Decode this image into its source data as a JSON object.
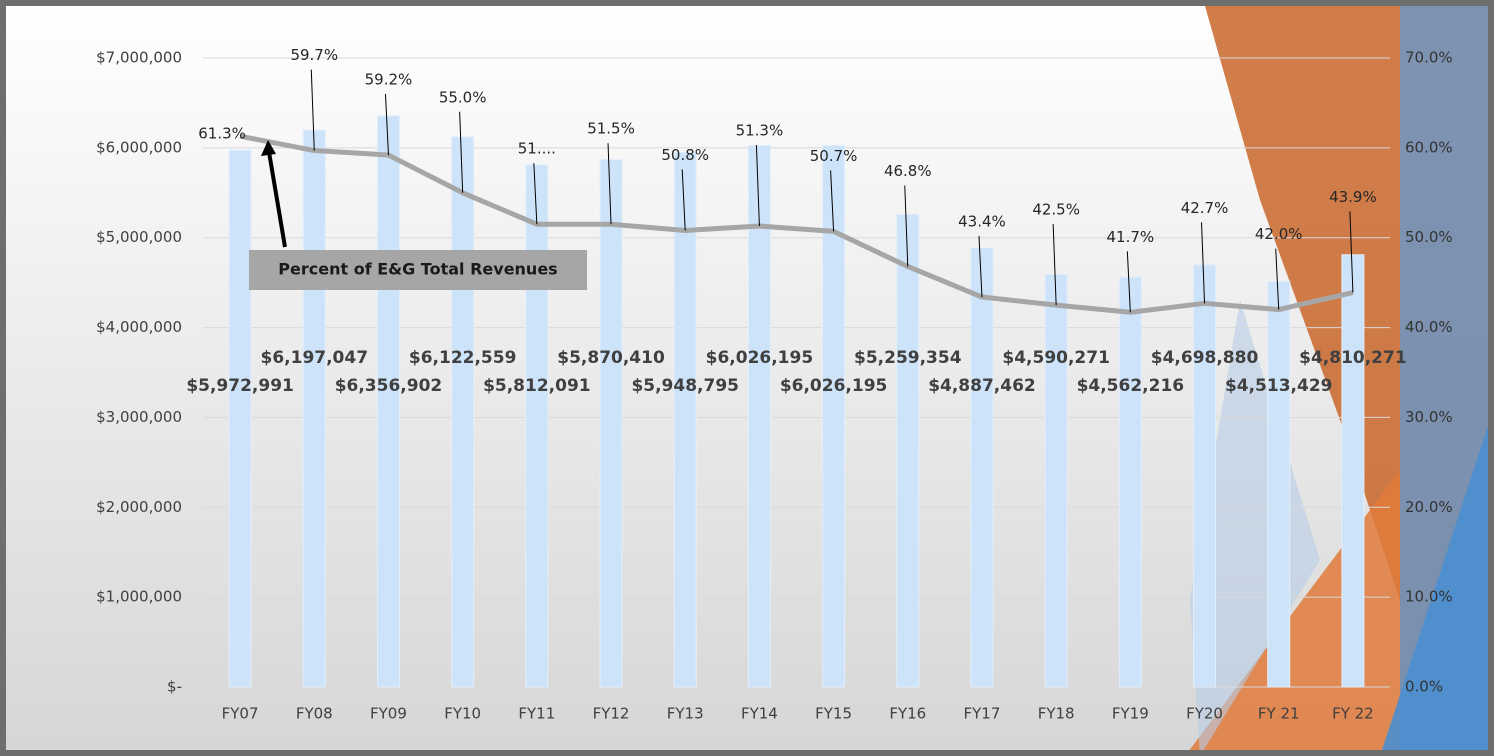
{
  "chart_data": {
    "type": "combo",
    "categories": [
      "FY07",
      "FY08",
      "FY09",
      "FY10",
      "FY11",
      "FY12",
      "FY13",
      "FY14",
      "FY15",
      "FY16",
      "FY17",
      "FY18",
      "FY19",
      "FY20",
      "FY 21",
      "FY 22"
    ],
    "series": [
      {
        "type": "bar",
        "color": "#cde3f9",
        "values": [
          5972991,
          6197047,
          6356902,
          6122559,
          5812091,
          5870410,
          5948795,
          6026195,
          6026195,
          5259354,
          4887462,
          4590271,
          4562216,
          4698880,
          4513429,
          4810271
        ],
        "value_labels": [
          "$5,972,991",
          "$6,197,047",
          "$6,356,902",
          "$6,122,559",
          "$5,812,091",
          "$5,870,410",
          "$5,948,795",
          "$6,026,195",
          "$6,026,195",
          "$5,259,354",
          "$4,887,462",
          "$4,590,271",
          "$4,562,216",
          "$4,698,880",
          "$4,513,429",
          "$4,810,271"
        ]
      },
      {
        "type": "line",
        "name": "Percent of E&G Total Revenues",
        "axis": "y2",
        "color": "#a6a6a6",
        "values": [
          61.3,
          59.7,
          59.2,
          55.0,
          51.5,
          51.5,
          50.8,
          51.3,
          50.7,
          46.8,
          43.4,
          42.5,
          41.7,
          42.7,
          42.0,
          43.9
        ],
        "value_labels": [
          "61.3%",
          "59.7%",
          "59.2%",
          "55.0%",
          "51....",
          "51.5%",
          "50.8%",
          "51.3%",
          "50.7%",
          "46.8%",
          "43.4%",
          "42.5%",
          "41.7%",
          "42.7%",
          "42.0%",
          "43.9%"
        ]
      }
    ],
    "ylim": [
      0,
      7000000
    ],
    "yticks": [
      {
        "value": 0,
        "label": "$-"
      },
      {
        "value": 1000000,
        "label": "$1,000,000"
      },
      {
        "value": 2000000,
        "label": "$2,000,000"
      },
      {
        "value": 3000000,
        "label": "$3,000,000"
      },
      {
        "value": 4000000,
        "label": "$4,000,000"
      },
      {
        "value": 5000000,
        "label": "$5,000,000"
      },
      {
        "value": 6000000,
        "label": "$6,000,000"
      },
      {
        "value": 7000000,
        "label": "$7,000,000"
      }
    ],
    "y2lim": [
      0,
      70
    ],
    "y2ticks": [
      {
        "value": 0,
        "label": "0.0%"
      },
      {
        "value": 10,
        "label": "10.0%"
      },
      {
        "value": 20,
        "label": "20.0%"
      },
      {
        "value": 30,
        "label": "30.0%"
      },
      {
        "value": 40,
        "label": "40.0%"
      },
      {
        "value": 50,
        "label": "50.0%"
      },
      {
        "value": 60,
        "label": "60.0%"
      },
      {
        "value": 70,
        "label": "70.0%"
      }
    ],
    "grid": true
  }
}
